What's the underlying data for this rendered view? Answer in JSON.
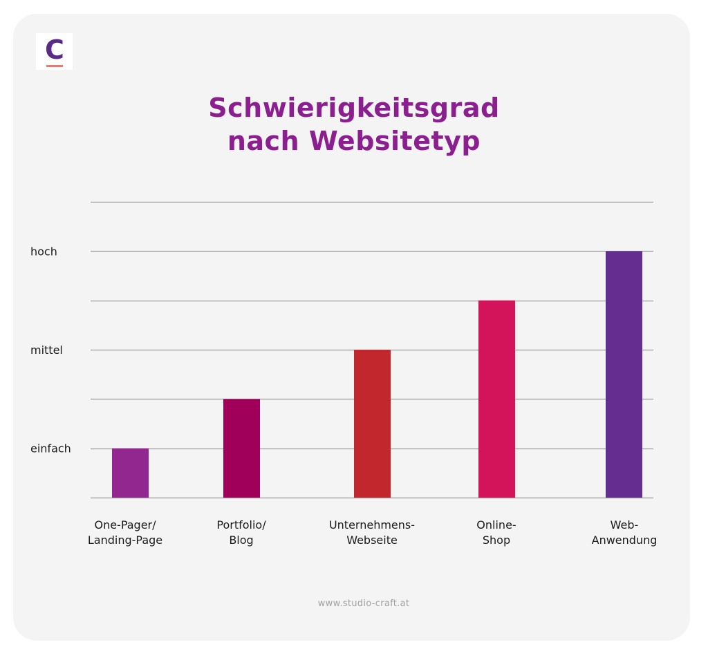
{
  "brand": {
    "logo_letter": "C",
    "logo_color": "#5b2a86",
    "logo_underline_color": "#e87a70",
    "website": "www.studio-craft.at"
  },
  "chart_data": {
    "type": "bar",
    "title_lines": [
      "Schwierigkeitsgrad",
      "nach Websitetyp"
    ],
    "title_color": "#8c1f8f",
    "xlabel": "",
    "ylabel": "",
    "ylim": [
      0,
      6
    ],
    "grid": true,
    "gridlines": [
      0,
      1,
      2,
      3,
      4,
      5,
      6
    ],
    "yticks": [
      {
        "value": 1,
        "label": "einfach"
      },
      {
        "value": 3,
        "label": "mittel"
      },
      {
        "value": 5,
        "label": "hoch"
      }
    ],
    "categories": [
      [
        "One-Pager/",
        "Landing-Page"
      ],
      [
        "Portfolio/",
        "Blog"
      ],
      [
        "Unternehmens-",
        "Webseite"
      ],
      [
        "Online-",
        "Shop"
      ],
      [
        "Web-",
        "Anwendung"
      ]
    ],
    "values": [
      1,
      2,
      3,
      4,
      5
    ],
    "colors": [
      "#92278f",
      "#a0005a",
      "#c1272d",
      "#d4145a",
      "#662d91"
    ],
    "legend": "none"
  }
}
